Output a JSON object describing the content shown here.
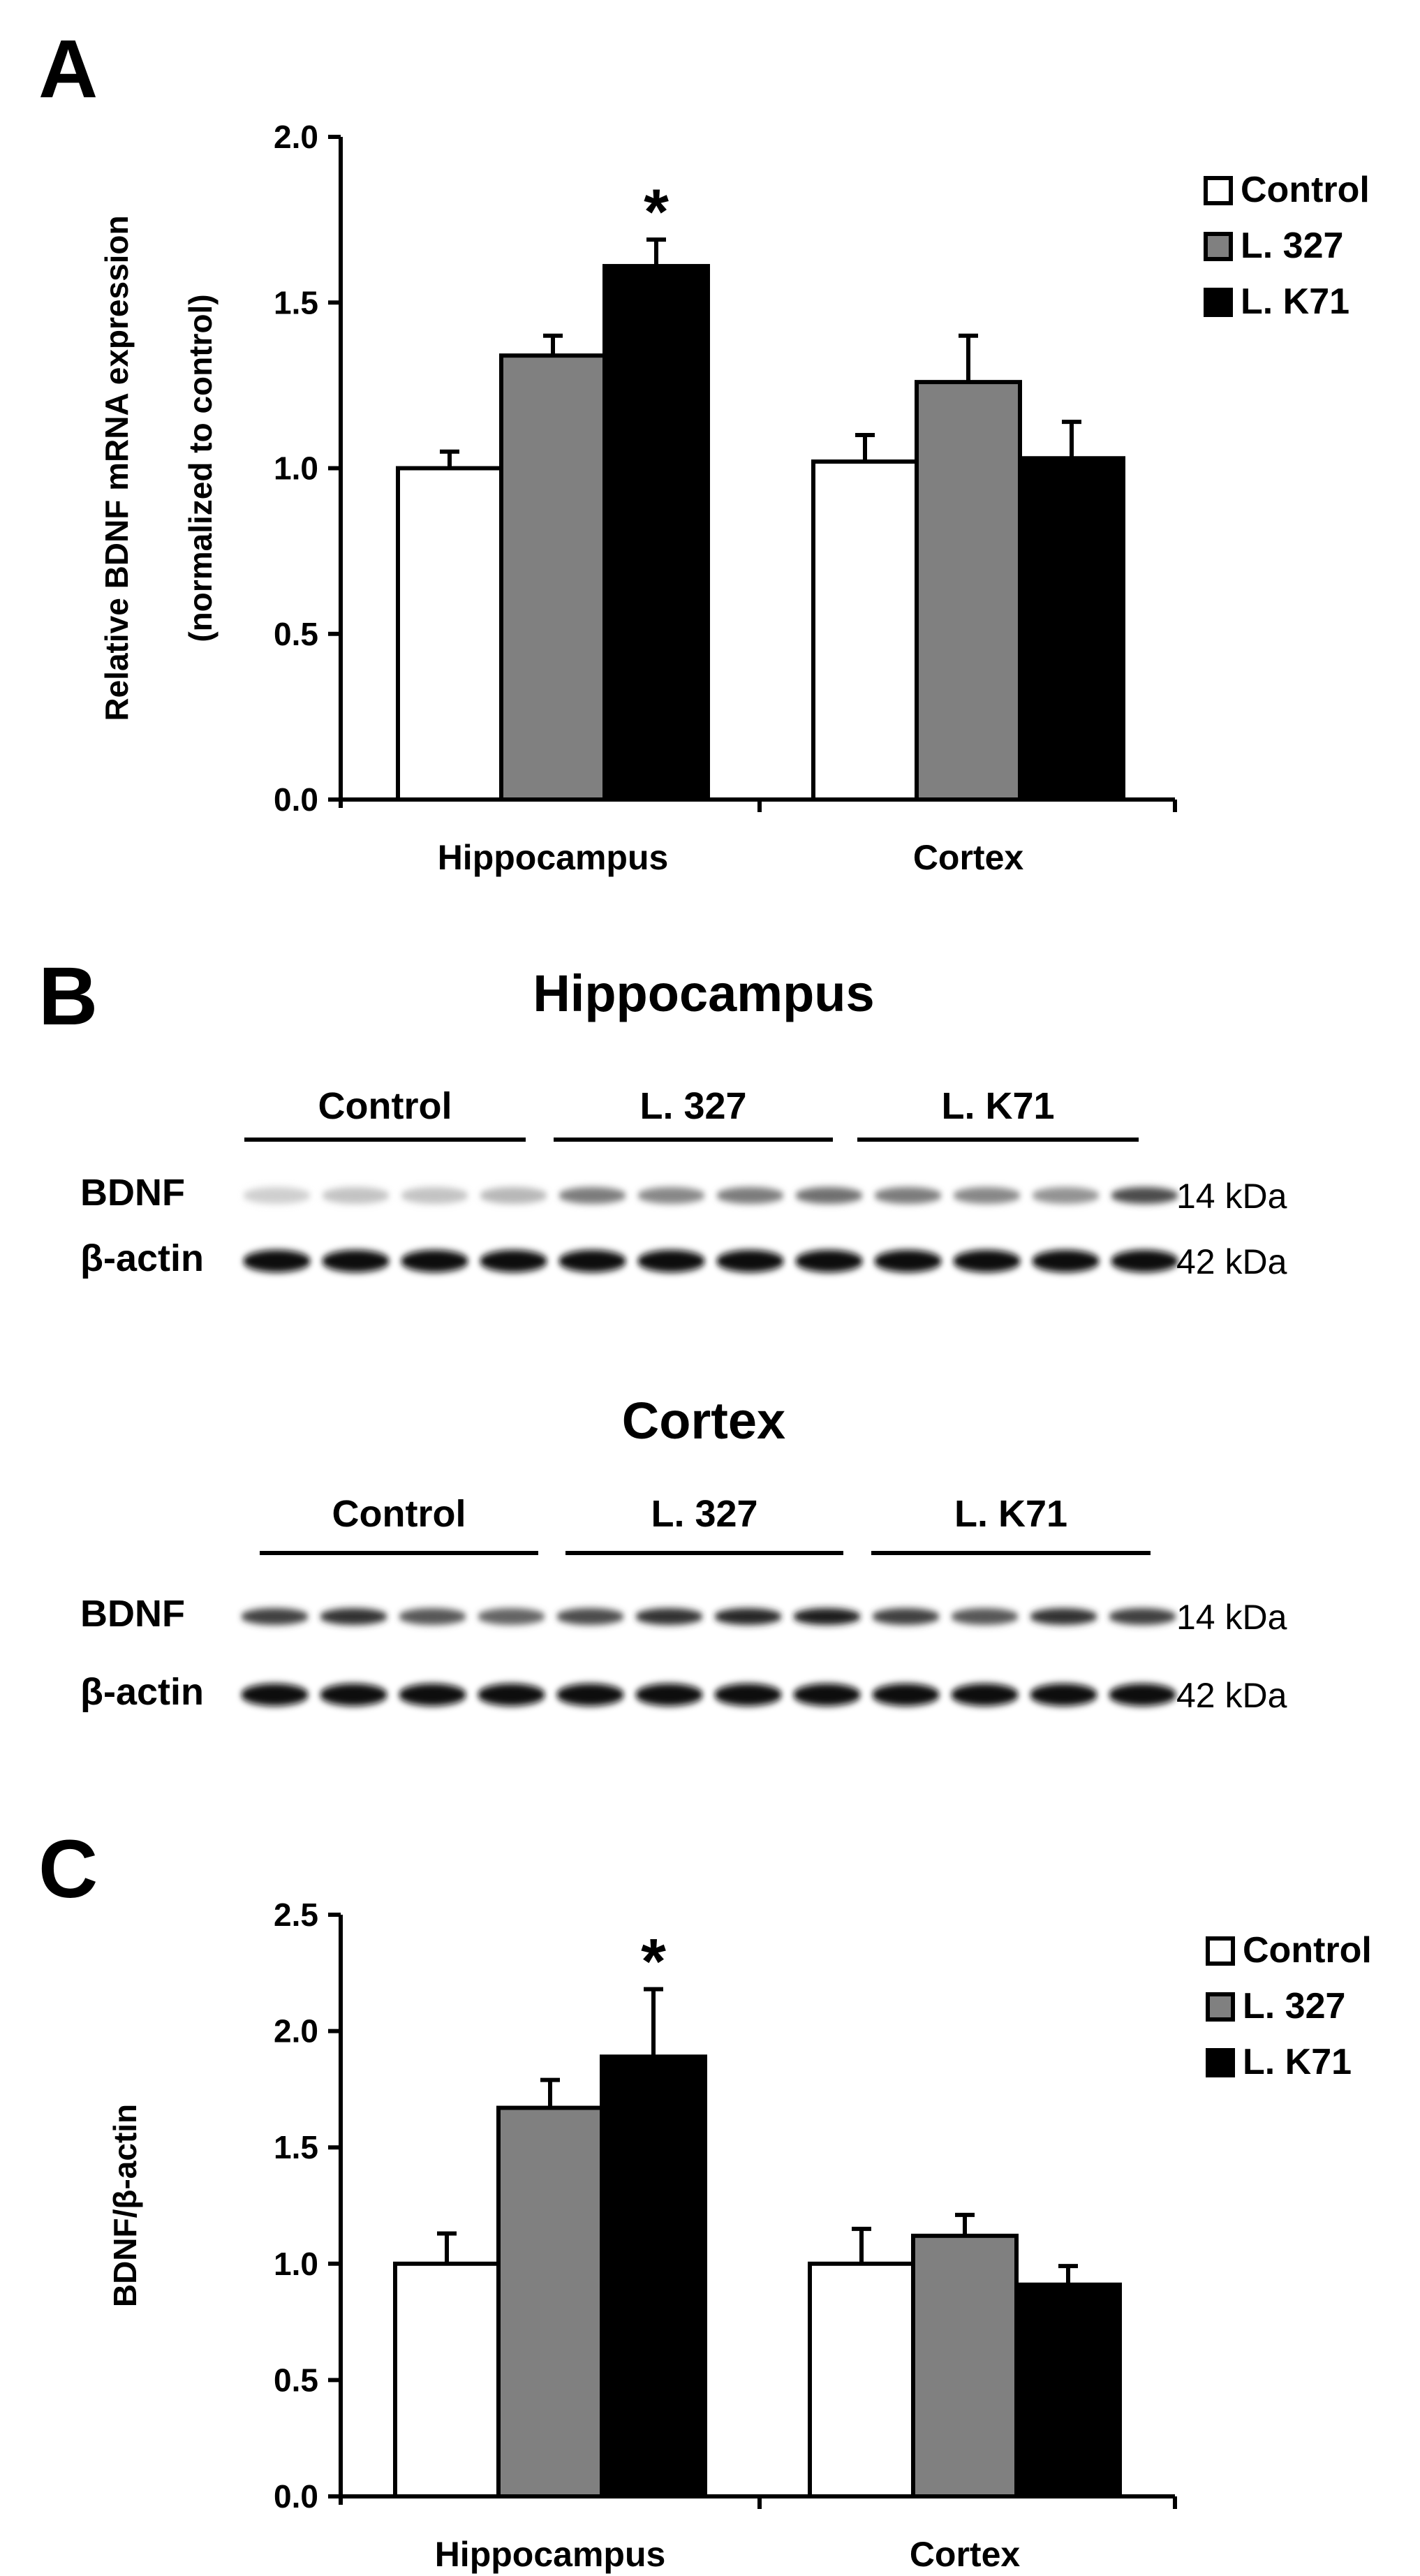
{
  "panels": {
    "a_label": "A",
    "b_label": "B",
    "c_label": "C"
  },
  "colors": {
    "control": "#ffffff",
    "l327": "#808080",
    "lk71": "#000000",
    "axis": "#000000"
  },
  "chart_data": [
    {
      "type": "bar",
      "panel": "A",
      "title": "",
      "categories": [
        "Hippocampus",
        "Cortex"
      ],
      "series": [
        {
          "name": "Control",
          "values": [
            1.0,
            1.02
          ],
          "errors": [
            0.05,
            0.08
          ],
          "color": "#ffffff"
        },
        {
          "name": "L. 327",
          "values": [
            1.34,
            1.26
          ],
          "errors": [
            0.06,
            0.14
          ],
          "color": "#808080"
        },
        {
          "name": "L. K71",
          "values": [
            1.61,
            1.03
          ],
          "errors": [
            0.08,
            0.11
          ],
          "color": "#000000"
        }
      ],
      "annotations": [
        {
          "category": "Hippocampus",
          "series": "L. K71",
          "text": "*"
        }
      ],
      "ylabel": [
        "Relative BDNF mRNA expression",
        "(normalized to control)"
      ],
      "xlabel": "",
      "ylim": [
        0,
        2.0
      ],
      "yticks": [
        "0.0",
        "0.5",
        "1.0",
        "1.5",
        "2.0"
      ],
      "legend_position": "top-right",
      "grid": false
    },
    {
      "type": "bar",
      "panel": "C",
      "title": "",
      "categories": [
        "Hippocampus",
        "Cortex"
      ],
      "series": [
        {
          "name": "Control",
          "values": [
            1.0,
            1.0
          ],
          "errors": [
            0.13,
            0.15
          ],
          "color": "#ffffff"
        },
        {
          "name": "L. 327",
          "values": [
            1.67,
            1.12
          ],
          "errors": [
            0.12,
            0.09
          ],
          "color": "#808080"
        },
        {
          "name": "L. K71",
          "values": [
            1.89,
            0.91
          ],
          "errors": [
            0.29,
            0.08
          ],
          "color": "#000000"
        }
      ],
      "annotations": [
        {
          "category": "Hippocampus",
          "series": "L. K71",
          "text": "*"
        }
      ],
      "ylabel": [
        "BDNF/β-actin"
      ],
      "xlabel": "",
      "ylim": [
        0,
        2.5
      ],
      "yticks": [
        "0.0",
        "0.5",
        "1.0",
        "1.5",
        "2.0",
        "2.5"
      ],
      "legend_position": "top-right",
      "grid": false
    }
  ],
  "blots": [
    {
      "title": "Hippocampus",
      "groups": [
        "Control",
        "L. 327",
        "L. K71"
      ],
      "rows": [
        {
          "protein": "BDNF",
          "size": "14 kDa",
          "intensities": [
            0.2,
            0.25,
            0.25,
            0.3,
            0.55,
            0.5,
            0.55,
            0.6,
            0.55,
            0.5,
            0.45,
            0.75
          ]
        },
        {
          "protein": "β-actin",
          "size": "42 kDa",
          "intensities": [
            1,
            1,
            1,
            1,
            1,
            1,
            1,
            1,
            1,
            1,
            1,
            1
          ]
        }
      ]
    },
    {
      "title": "Cortex",
      "groups": [
        "Control",
        "L. 327",
        "L. K71"
      ],
      "rows": [
        {
          "protein": "BDNF",
          "size": "14 kDa",
          "intensities": [
            0.8,
            0.85,
            0.7,
            0.65,
            0.75,
            0.85,
            0.9,
            0.95,
            0.8,
            0.7,
            0.85,
            0.8
          ]
        },
        {
          "protein": "β-actin",
          "size": "42 kDa",
          "intensities": [
            1,
            1,
            1,
            1,
            1,
            1,
            1,
            1,
            1,
            1,
            1,
            1
          ]
        }
      ]
    }
  ]
}
